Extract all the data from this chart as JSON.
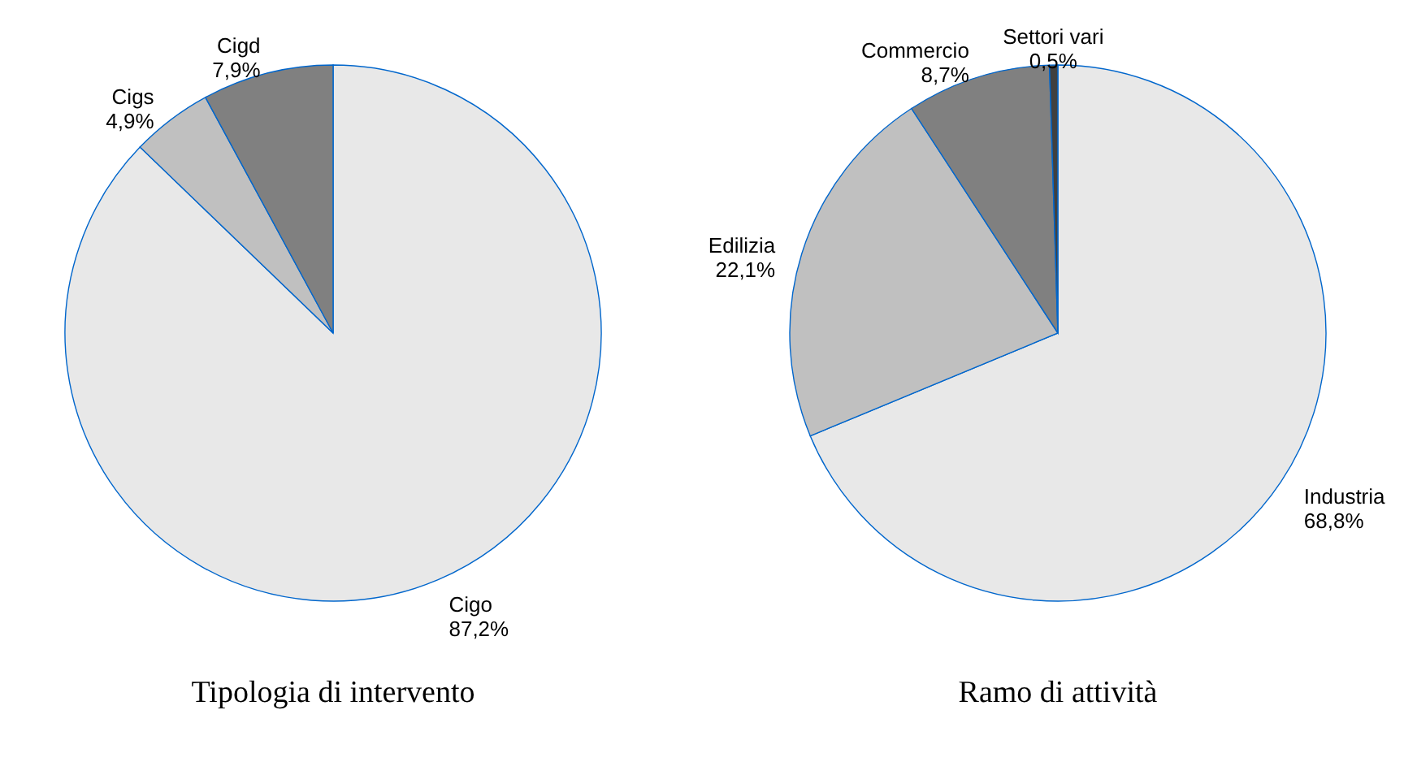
{
  "chart_data": [
    {
      "type": "pie",
      "title": "Tipologia di intervento",
      "categories": [
        "Cigo",
        "Cigs",
        "Cigd"
      ],
      "values": [
        87.2,
        4.9,
        7.9
      ],
      "value_labels": [
        "87,2%",
        "4,9%",
        "7,9%"
      ],
      "colors": [
        "#e8e8e8",
        "#c0c0c0",
        "#808080"
      ],
      "legend": false
    },
    {
      "type": "pie",
      "title": "Ramo di attività",
      "categories": [
        "Industria",
        "Edilizia",
        "Commercio",
        "Settori vari"
      ],
      "values": [
        68.8,
        22.1,
        8.7,
        0.5
      ],
      "value_labels": [
        "68,8%",
        "22,1%",
        "8,7%",
        "0,5%"
      ],
      "colors": [
        "#e8e8e8",
        "#c0c0c0",
        "#808080",
        "#404040"
      ],
      "legend": false
    }
  ]
}
